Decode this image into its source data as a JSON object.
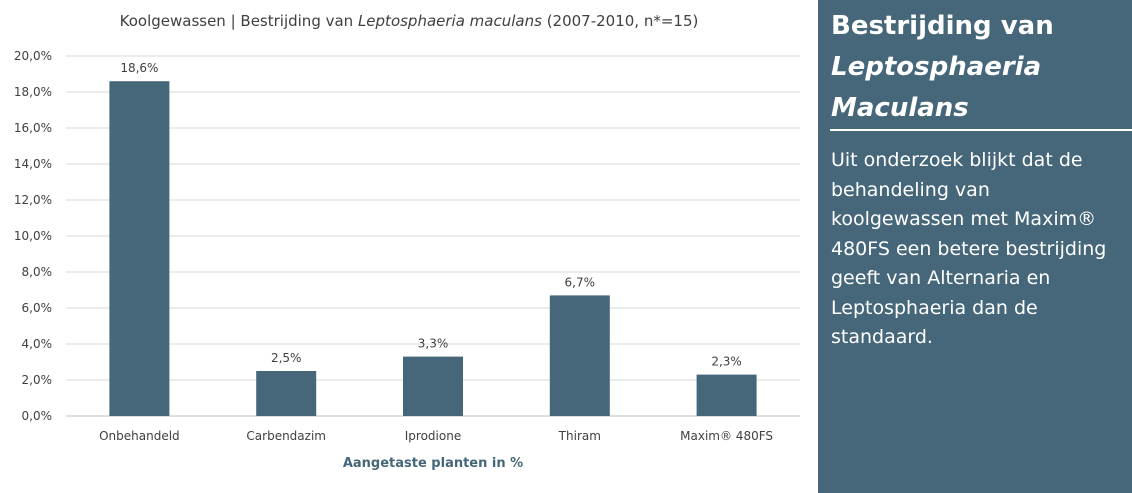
{
  "chart_data": {
    "type": "bar",
    "title_prefix": "Koolgewassen | Bestrijding van ",
    "title_italic": "Leptosphaeria maculans",
    "title_suffix": " (2007-2010, n*=15)",
    "categories": [
      "Onbehandeld",
      "Carbendazim",
      "Iprodione",
      "Thiram",
      "Maxim® 480FS"
    ],
    "values": [
      18.6,
      2.5,
      3.3,
      6.7,
      2.3
    ],
    "data_labels": [
      "18,6%",
      "2,5%",
      "3,3%",
      "6,7%",
      "2,3%"
    ],
    "xlabel": "Aangetaste planten in %",
    "ylabel": "",
    "ylim": [
      0,
      20
    ],
    "yticks": [
      "0,0%",
      "2,0%",
      "4,0%",
      "6,0%",
      "8,0%",
      "10,0%",
      "12,0%",
      "14,0%",
      "16,0%",
      "18,0%",
      "20,0%"
    ],
    "grid": true,
    "bar_color": "#456779"
  },
  "panel": {
    "title_line1": "Bestrijding van",
    "title_line2": "Leptosphaeria",
    "title_line3": "Maculans",
    "body": "Uit onderzoek blijkt dat de behandeling van koolgewassen met Maxim® 480FS een betere bestrijding geeft van Alternaria en Leptosphaeria dan de standaard.",
    "background": "#456779"
  }
}
